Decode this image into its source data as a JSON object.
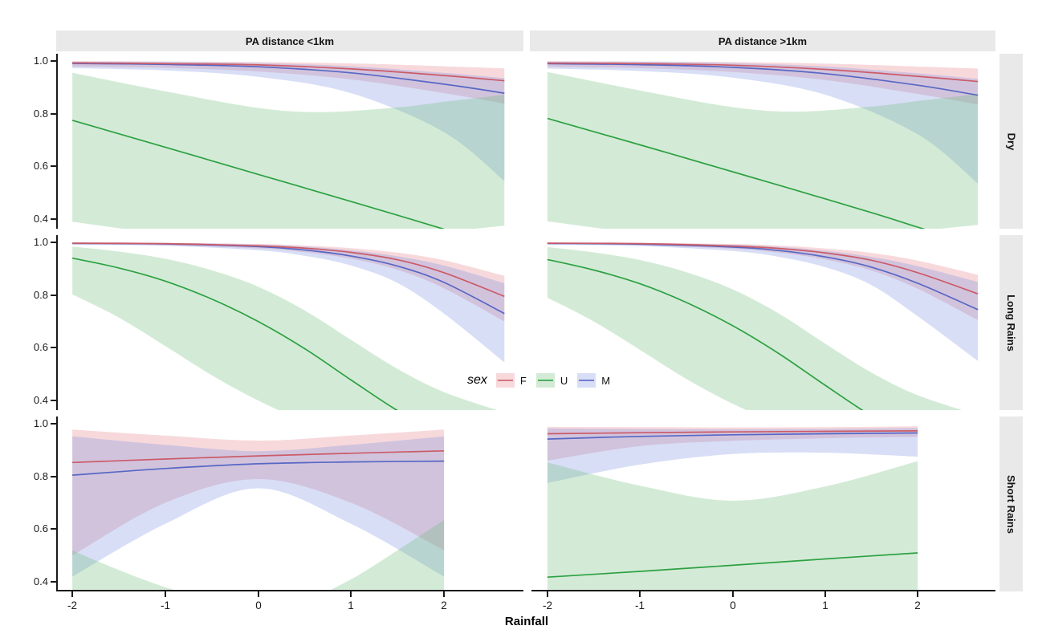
{
  "figure": {
    "col_facets": [
      "PA distance <1km",
      "PA distance >1km"
    ],
    "row_facets": [
      "Dry",
      "Long Rains",
      "Short Rains"
    ],
    "x_axis": {
      "title": "Rainfall",
      "ticks": [
        -2,
        -1,
        0,
        1,
        2
      ],
      "tick_labels": [
        "-2",
        "-1",
        "0",
        "1",
        "2"
      ]
    },
    "y_axis": {
      "ticks": [
        1.0,
        0.8,
        0.6,
        0.4
      ],
      "tick_labels": [
        "1.0",
        "0.8",
        "0.6",
        "0.4"
      ]
    },
    "legend": {
      "title": "sex",
      "entries": [
        "F",
        "U",
        "M"
      ]
    },
    "strip_bg": "#e9e9e9"
  },
  "series_styles": {
    "F": {
      "line": "#cb5b68",
      "fill": "rgba(228,130,140,0.30)"
    },
    "U": {
      "line": "#2da042",
      "fill": "rgba(110,190,120,0.30)"
    },
    "M": {
      "line": "#5767c4",
      "fill": "rgba(125,145,225,0.30)"
    }
  },
  "chart_data": {
    "type": "line",
    "title": "",
    "xlabel": "Rainfall",
    "ylabel": "",
    "xlim": [
      -2.17,
      2.85
    ],
    "ylim": [
      0.37,
      1.03
    ],
    "grid": false,
    "legend_position": "center",
    "facets": {
      "columns": [
        "PA distance <1km",
        "PA distance >1km"
      ],
      "rows": [
        "Dry",
        "Long Rains",
        "Short Rains"
      ]
    },
    "series_names": [
      "F",
      "U",
      "M"
    ],
    "panels": [
      {
        "col": 0,
        "row": 0,
        "distance": "PA distance <1km",
        "season": "Dry",
        "series": [
          {
            "name": "F",
            "x": [
              -2,
              -1,
              0,
              1,
              2,
              2.65
            ],
            "line": [
              0.993,
              0.99,
              0.985,
              0.97,
              0.945,
              0.925
            ],
            "lo": [
              0.979,
              0.974,
              0.96,
              0.93,
              0.878,
              0.838
            ],
            "hi": [
              0.999,
              0.998,
              0.996,
              0.991,
              0.98,
              0.972
            ]
          },
          {
            "name": "M",
            "x": [
              -2,
              -1,
              0,
              1,
              2,
              2.65
            ],
            "line": [
              0.991,
              0.987,
              0.978,
              0.955,
              0.912,
              0.878
            ],
            "lo": [
              0.973,
              0.964,
              0.94,
              0.878,
              0.73,
              0.545
            ],
            "hi": [
              0.998,
              0.997,
              0.992,
              0.98,
              0.955,
              0.935
            ]
          },
          {
            "name": "U",
            "x": [
              -2,
              -1,
              0,
              0.7,
              1.5,
              2,
              2.65
            ],
            "line": [
              0.775,
              0.673,
              0.57,
              0.498,
              0.415,
              0.362,
              0.295
            ],
            "lo": [
              0.39,
              0.345,
              0.325,
              0.325,
              0.335,
              0.352,
              0.375
            ],
            "hi": [
              0.955,
              0.885,
              0.822,
              0.806,
              0.824,
              0.845,
              0.872
            ]
          }
        ]
      },
      {
        "col": 1,
        "row": 0,
        "distance": "PA distance >1km",
        "season": "Dry",
        "series": [
          {
            "name": "F",
            "x": [
              -2,
              -1,
              0,
              1,
              2,
              2.65
            ],
            "line": [
              0.992,
              0.99,
              0.984,
              0.968,
              0.942,
              0.922
            ],
            "lo": [
              0.978,
              0.973,
              0.958,
              0.928,
              0.875,
              0.835
            ],
            "hi": [
              0.999,
              0.998,
              0.996,
              0.99,
              0.979,
              0.971
            ]
          },
          {
            "name": "M",
            "x": [
              -2,
              -1,
              0,
              1,
              2,
              2.65
            ],
            "line": [
              0.99,
              0.986,
              0.976,
              0.952,
              0.908,
              0.87
            ],
            "lo": [
              0.971,
              0.962,
              0.937,
              0.872,
              0.722,
              0.535
            ],
            "hi": [
              0.998,
              0.997,
              0.992,
              0.979,
              0.953,
              0.932
            ]
          },
          {
            "name": "U",
            "x": [
              -2,
              -1,
              0,
              0.7,
              1.5,
              2,
              2.65
            ],
            "line": [
              0.782,
              0.682,
              0.58,
              0.508,
              0.425,
              0.37,
              0.3
            ],
            "lo": [
              0.392,
              0.348,
              0.328,
              0.328,
              0.338,
              0.355,
              0.378
            ],
            "hi": [
              0.958,
              0.888,
              0.825,
              0.808,
              0.827,
              0.848,
              0.875
            ]
          }
        ]
      },
      {
        "col": 0,
        "row": 1,
        "distance": "PA distance <1km",
        "season": "Long Rains",
        "series": [
          {
            "name": "F",
            "x": [
              -2,
              -1,
              0,
              0.5,
              1,
              1.5,
              2,
              2.65
            ],
            "line": [
              0.997,
              0.995,
              0.987,
              0.978,
              0.962,
              0.934,
              0.885,
              0.795
            ],
            "lo": [
              0.993,
              0.989,
              0.977,
              0.963,
              0.938,
              0.896,
              0.826,
              0.7
            ],
            "hi": [
              0.999,
              0.998,
              0.994,
              0.988,
              0.978,
              0.961,
              0.932,
              0.873
            ]
          },
          {
            "name": "M",
            "x": [
              -2,
              -1,
              0,
              0.5,
              1,
              1.5,
              2,
              2.65
            ],
            "line": [
              0.996,
              0.994,
              0.984,
              0.971,
              0.948,
              0.91,
              0.848,
              0.73
            ],
            "lo": [
              0.991,
              0.987,
              0.97,
              0.949,
              0.912,
              0.846,
              0.73,
              0.545
            ],
            "hi": [
              0.999,
              0.998,
              0.992,
              0.984,
              0.97,
              0.947,
              0.912,
              0.845
            ]
          },
          {
            "name": "U",
            "x": [
              -2,
              -1.5,
              -1,
              -0.5,
              0,
              0.5,
              1,
              1.5,
              2,
              2.65
            ],
            "line": [
              0.94,
              0.903,
              0.853,
              0.785,
              0.7,
              0.597,
              0.478,
              0.362,
              0.268,
              0.18
            ],
            "lo": [
              0.803,
              0.715,
              0.607,
              0.496,
              0.4,
              0.322,
              0.262,
              0.22,
              0.192,
              0.165
            ],
            "hi": [
              0.984,
              0.965,
              0.938,
              0.894,
              0.832,
              0.742,
              0.63,
              0.52,
              0.432,
              0.355
            ]
          }
        ]
      },
      {
        "col": 1,
        "row": 1,
        "distance": "PA distance >1km",
        "season": "Long Rains",
        "series": [
          {
            "name": "F",
            "x": [
              -2,
              -1,
              0,
              0.5,
              1,
              1.5,
              2,
              2.65
            ],
            "line": [
              0.997,
              0.995,
              0.986,
              0.977,
              0.96,
              0.932,
              0.885,
              0.805
            ],
            "lo": [
              0.993,
              0.989,
              0.976,
              0.961,
              0.935,
              0.893,
              0.824,
              0.705
            ],
            "hi": [
              0.999,
              0.998,
              0.994,
              0.988,
              0.977,
              0.96,
              0.931,
              0.877
            ]
          },
          {
            "name": "M",
            "x": [
              -2,
              -1,
              0,
              0.5,
              1,
              1.5,
              2,
              2.65
            ],
            "line": [
              0.996,
              0.993,
              0.982,
              0.969,
              0.945,
              0.906,
              0.845,
              0.745
            ],
            "lo": [
              0.99,
              0.986,
              0.967,
              0.945,
              0.906,
              0.838,
              0.72,
              0.55
            ],
            "hi": [
              0.999,
              0.998,
              0.991,
              0.983,
              0.968,
              0.945,
              0.91,
              0.85
            ]
          },
          {
            "name": "U",
            "x": [
              -2,
              -1.5,
              -1,
              -0.5,
              0,
              0.5,
              1,
              1.5,
              2,
              2.65
            ],
            "line": [
              0.935,
              0.895,
              0.843,
              0.772,
              0.684,
              0.578,
              0.458,
              0.342,
              0.25,
              0.165
            ],
            "lo": [
              0.79,
              0.7,
              0.592,
              0.482,
              0.388,
              0.312,
              0.254,
              0.214,
              0.188,
              0.16
            ],
            "hi": [
              0.982,
              0.962,
              0.933,
              0.887,
              0.822,
              0.73,
              0.616,
              0.506,
              0.42,
              0.345
            ]
          }
        ]
      },
      {
        "col": 0,
        "row": 2,
        "distance": "PA distance <1km",
        "season": "Short Rains",
        "series": [
          {
            "name": "F",
            "x": [
              -2,
              -1,
              0,
              1,
              2
            ],
            "line": [
              0.853,
              0.866,
              0.878,
              0.888,
              0.897
            ],
            "lo": [
              0.5,
              0.7,
              0.79,
              0.7,
              0.52
            ],
            "hi": [
              0.978,
              0.955,
              0.936,
              0.955,
              0.978
            ]
          },
          {
            "name": "M",
            "x": [
              -2,
              -1,
              0,
              1,
              2
            ],
            "line": [
              0.805,
              0.83,
              0.848,
              0.855,
              0.858
            ],
            "lo": [
              0.42,
              0.62,
              0.755,
              0.62,
              0.42
            ],
            "hi": [
              0.952,
              0.92,
              0.896,
              0.92,
              0.952
            ]
          },
          {
            "name": "U",
            "x": [
              -2,
              -1.5,
              -1,
              -0.5,
              0,
              0.5,
              1,
              1.5,
              2
            ],
            "line": [
              0.28,
              0.26,
              0.25,
              0.245,
              0.25,
              0.27,
              0.3,
              0.33,
              0.36
            ],
            "lo": [
              0.15,
              0.15,
              0.15,
              0.15,
              0.15,
              0.15,
              0.15,
              0.15,
              0.15
            ],
            "hi": [
              0.52,
              0.445,
              0.38,
              0.33,
              0.31,
              0.33,
              0.41,
              0.52,
              0.635
            ]
          }
        ]
      },
      {
        "col": 1,
        "row": 2,
        "distance": "PA distance >1km",
        "season": "Short Rains",
        "series": [
          {
            "name": "F",
            "x": [
              -2,
              -1,
              0,
              1,
              2
            ],
            "line": [
              0.962,
              0.966,
              0.969,
              0.971,
              0.973
            ],
            "lo": [
              0.86,
              0.915,
              0.935,
              0.945,
              0.95
            ],
            "hi": [
              0.988,
              0.987,
              0.986,
              0.987,
              0.99
            ]
          },
          {
            "name": "M",
            "x": [
              -2,
              -1,
              0,
              1,
              2
            ],
            "line": [
              0.942,
              0.952,
              0.958,
              0.962,
              0.965
            ],
            "lo": [
              0.775,
              0.845,
              0.885,
              0.89,
              0.875
            ],
            "hi": [
              0.982,
              0.98,
              0.979,
              0.98,
              0.984
            ]
          },
          {
            "name": "U",
            "x": [
              -2,
              -1,
              0,
              1,
              2
            ],
            "line": [
              0.418,
              0.44,
              0.463,
              0.487,
              0.51
            ],
            "lo": [
              0.15,
              0.15,
              0.15,
              0.15,
              0.15
            ],
            "hi": [
              0.853,
              0.765,
              0.708,
              0.762,
              0.858
            ]
          }
        ]
      }
    ]
  }
}
